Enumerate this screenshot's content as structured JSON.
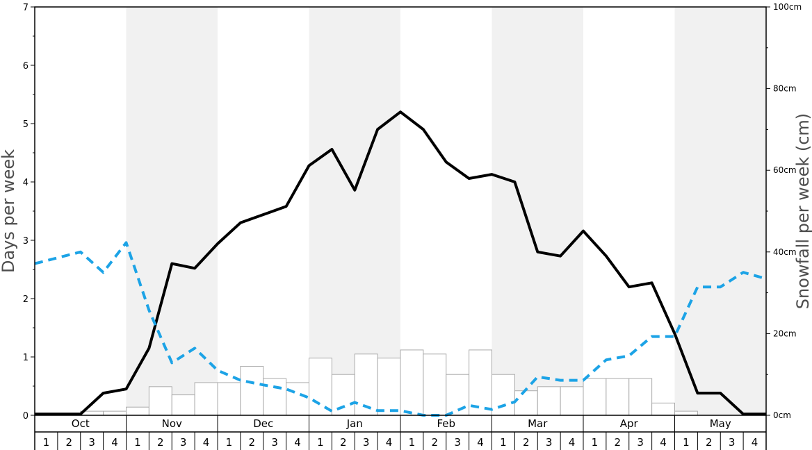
{
  "chart_data": {
    "type": "bar+line",
    "xlabel": "",
    "left_axis": {
      "label": "Days per week",
      "min": 0,
      "max": 7,
      "ticks": [
        "0",
        "1",
        "2",
        "3",
        "4",
        "5",
        "6",
        "7"
      ]
    },
    "right_axis": {
      "label": "Snowfall per week (cm)",
      "min": 0,
      "max": 100,
      "ticks": [
        "0cm",
        "20cm",
        "40cm",
        "60cm",
        "80cm",
        "100cm"
      ]
    },
    "months": [
      {
        "label": "Oct",
        "weeks": [
          "1",
          "2",
          "3",
          "4"
        ],
        "shaded": false
      },
      {
        "label": "Nov",
        "weeks": [
          "1",
          "2",
          "3",
          "4"
        ],
        "shaded": true
      },
      {
        "label": "Dec",
        "weeks": [
          "1",
          "2",
          "3",
          "4"
        ],
        "shaded": false
      },
      {
        "label": "Jan",
        "weeks": [
          "1",
          "2",
          "3",
          "4"
        ],
        "shaded": true
      },
      {
        "label": "Feb",
        "weeks": [
          "1",
          "2",
          "3",
          "4"
        ],
        "shaded": false
      },
      {
        "label": "Mar",
        "weeks": [
          "1",
          "2",
          "3",
          "4"
        ],
        "shaded": true
      },
      {
        "label": "Apr",
        "weeks": [
          "1",
          "2",
          "3",
          "4"
        ],
        "shaded": false
      },
      {
        "label": "May",
        "weeks": [
          "1",
          "2",
          "3",
          "4"
        ],
        "shaded": true
      }
    ],
    "snowfall_bars_cm": [
      0,
      0,
      1.0,
      1.0,
      2.0,
      7.0,
      5.0,
      8.0,
      8.0,
      12.0,
      9.0,
      8.0,
      14.0,
      10.0,
      15.0,
      14.0,
      16.0,
      15.0,
      10.0,
      16.0,
      10.0,
      6.0,
      7.0,
      7.0,
      9.0,
      9.0,
      9.0,
      3.0,
      1.0,
      0,
      0,
      0
    ],
    "series": [
      {
        "style": "solid",
        "color": "#000000",
        "values": [
          0.02,
          0.02,
          0.02,
          0.38,
          0.45,
          1.15,
          2.6,
          2.52,
          2.94,
          3.3,
          3.44,
          3.58,
          4.28,
          4.56,
          3.86,
          4.9,
          5.2,
          4.9,
          4.34,
          4.06,
          4.13,
          4.0,
          2.8,
          2.73,
          3.16,
          2.73,
          2.2,
          2.27,
          1.4,
          0.38,
          0.38,
          0.02,
          0.02
        ]
      },
      {
        "style": "dashed",
        "color": "#1ca3e6",
        "values": [
          2.6,
          2.7,
          2.8,
          2.45,
          2.96,
          1.8,
          0.9,
          1.15,
          0.77,
          0.6,
          0.52,
          0.45,
          0.3,
          0.07,
          0.22,
          0.08,
          0.08,
          0.0,
          0.0,
          0.17,
          0.1,
          0.23,
          0.66,
          0.6,
          0.6,
          0.95,
          1.02,
          1.35,
          1.35,
          2.2,
          2.2,
          2.45,
          2.34
        ]
      }
    ],
    "grid": false,
    "legend": "none",
    "colors": {
      "shade": "#f1f1f1",
      "bar_fill": "#ffffff",
      "bar_stroke": "#aaaaaa",
      "axis": "#000000"
    }
  }
}
